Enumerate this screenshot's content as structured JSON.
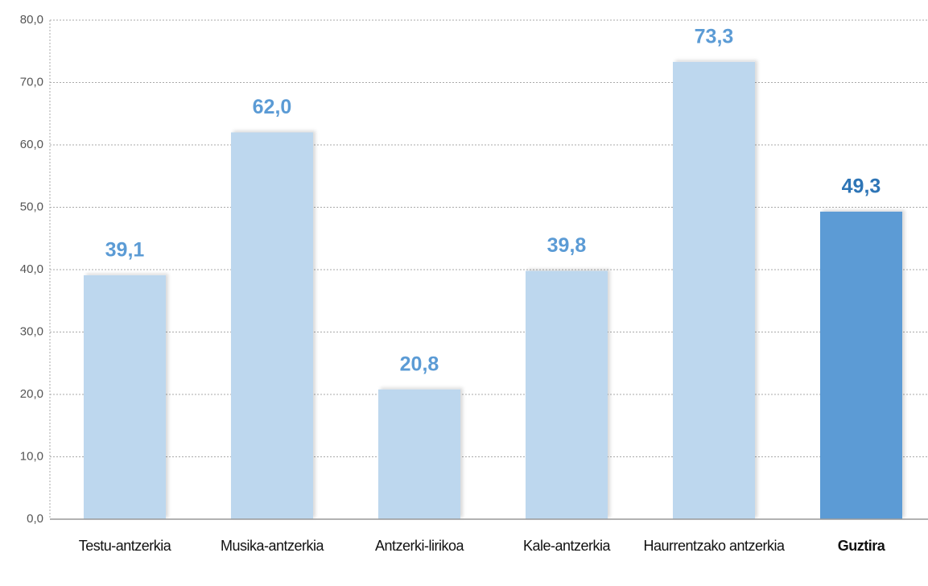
{
  "chart_data": {
    "type": "bar",
    "categories": [
      "Testu-antzerkia",
      "Musika-antzerkia",
      "Antzerki-lirikoa",
      "Kale-antzerkia",
      "Haurrentzako antzerkia",
      "Guztira"
    ],
    "values": [
      39.1,
      62.0,
      20.8,
      39.8,
      73.3,
      49.3
    ],
    "value_labels": [
      "39,1",
      "62,0",
      "20,8",
      "39,8",
      "73,3",
      "49,3"
    ],
    "color": "#bdd7ee",
    "label_color": "#5b9bd5",
    "highlight_index": 5,
    "highlight_color": "#5b9bd5",
    "highlight_label_color": "#2e75b6",
    "ylim": [
      0,
      80
    ],
    "yticks": [
      {
        "value": 0,
        "label": "0,0"
      },
      {
        "value": 10,
        "label": "10,0"
      },
      {
        "value": 20,
        "label": "20,0"
      },
      {
        "value": 30,
        "label": "30,0"
      },
      {
        "value": 40,
        "label": "40,0"
      },
      {
        "value": 50,
        "label": "50,0"
      },
      {
        "value": 60,
        "label": "60,0"
      },
      {
        "value": 70,
        "label": "70,0"
      },
      {
        "value": 80,
        "label": "80,0"
      }
    ],
    "grid": true
  }
}
